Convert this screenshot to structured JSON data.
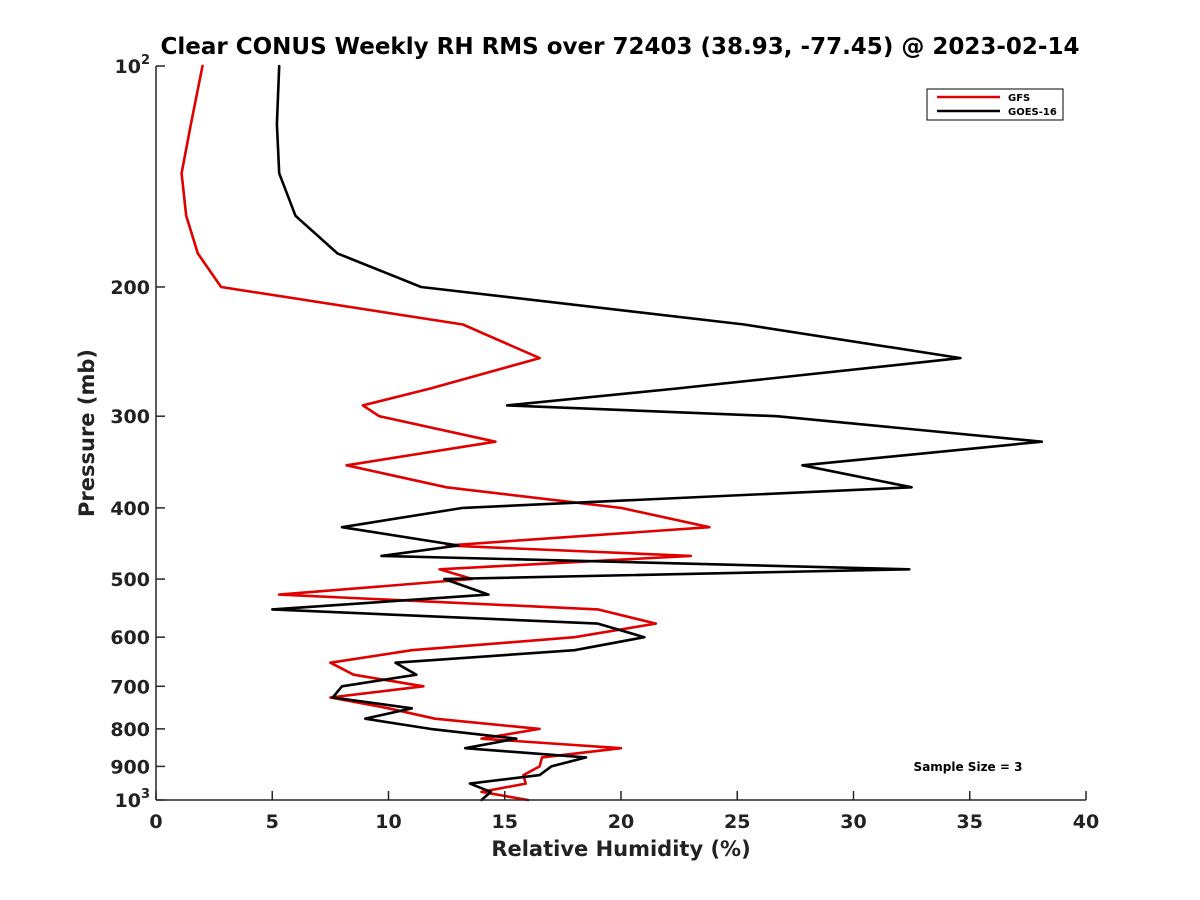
{
  "chart_data": {
    "type": "line",
    "title": "Clear CONUS Weekly RH RMS over 72403 (38.93, -77.45) @ 2023-02-14",
    "xlabel": "Relative Humidity (%)",
    "ylabel": "Pressure (mb)",
    "xlim": [
      0,
      40
    ],
    "ylim": [
      100,
      1000
    ],
    "y_scale": "log",
    "y_reversed": true,
    "grid": false,
    "legend_position": "top-right",
    "x_ticks": [
      0,
      5,
      10,
      15,
      20,
      25,
      30,
      35,
      40
    ],
    "x_tick_labels": [
      "0",
      "5",
      "10",
      "15",
      "20",
      "25",
      "30",
      "35",
      "40"
    ],
    "y_ticks": [
      100,
      200,
      300,
      400,
      500,
      600,
      700,
      800,
      900,
      1000
    ],
    "y_tick_labels": [
      {
        "base": "10",
        "exp": "2"
      },
      {
        "base": "200",
        "exp": ""
      },
      {
        "base": "300",
        "exp": ""
      },
      {
        "base": "400",
        "exp": ""
      },
      {
        "base": "500",
        "exp": ""
      },
      {
        "base": "600",
        "exp": ""
      },
      {
        "base": "700",
        "exp": ""
      },
      {
        "base": "800",
        "exp": ""
      },
      {
        "base": "900",
        "exp": ""
      },
      {
        "base": "10",
        "exp": "3"
      }
    ],
    "annotation": "Sample Size = 3",
    "series": [
      {
        "name": "GFS",
        "color": "#e00000",
        "points": [
          [
            2.0,
            100
          ],
          [
            1.5,
            120
          ],
          [
            1.1,
            140
          ],
          [
            1.3,
            160
          ],
          [
            1.8,
            180
          ],
          [
            2.8,
            200
          ],
          [
            13.2,
            225
          ],
          [
            16.5,
            250
          ],
          [
            11.8,
            275
          ],
          [
            8.9,
            290
          ],
          [
            9.6,
            300
          ],
          [
            14.6,
            325
          ],
          [
            8.2,
            350
          ],
          [
            12.5,
            375
          ],
          [
            20.0,
            400
          ],
          [
            23.8,
            425
          ],
          [
            12.5,
            450
          ],
          [
            23.0,
            465
          ],
          [
            12.2,
            485
          ],
          [
            13.6,
            500
          ],
          [
            5.3,
            525
          ],
          [
            19.0,
            550
          ],
          [
            21.5,
            575
          ],
          [
            18.0,
            600
          ],
          [
            11.0,
            625
          ],
          [
            7.5,
            650
          ],
          [
            8.5,
            675
          ],
          [
            11.5,
            700
          ],
          [
            7.5,
            725
          ],
          [
            10.0,
            750
          ],
          [
            12.0,
            775
          ],
          [
            16.5,
            800
          ],
          [
            14.0,
            825
          ],
          [
            20.0,
            850
          ],
          [
            16.6,
            875
          ],
          [
            16.5,
            900
          ],
          [
            15.8,
            925
          ],
          [
            15.9,
            950
          ],
          [
            14.0,
            975
          ],
          [
            16.0,
            1000
          ]
        ]
      },
      {
        "name": "GOES-16",
        "color": "#000000",
        "points": [
          [
            5.3,
            100
          ],
          [
            5.2,
            120
          ],
          [
            5.3,
            140
          ],
          [
            6.0,
            160
          ],
          [
            7.8,
            180
          ],
          [
            11.4,
            200
          ],
          [
            25.3,
            225
          ],
          [
            34.6,
            250
          ],
          [
            22.4,
            275
          ],
          [
            15.1,
            290
          ],
          [
            26.7,
            300
          ],
          [
            38.1,
            325
          ],
          [
            27.8,
            350
          ],
          [
            32.5,
            375
          ],
          [
            13.2,
            400
          ],
          [
            8.0,
            425
          ],
          [
            13.0,
            450
          ],
          [
            9.7,
            465
          ],
          [
            32.4,
            485
          ],
          [
            12.4,
            500
          ],
          [
            14.3,
            525
          ],
          [
            5.0,
            550
          ],
          [
            19.0,
            575
          ],
          [
            21.0,
            600
          ],
          [
            18.0,
            625
          ],
          [
            10.3,
            650
          ],
          [
            11.2,
            675
          ],
          [
            8.0,
            700
          ],
          [
            7.6,
            725
          ],
          [
            11.0,
            750
          ],
          [
            9.0,
            775
          ],
          [
            11.8,
            800
          ],
          [
            15.5,
            825
          ],
          [
            13.3,
            850
          ],
          [
            18.5,
            875
          ],
          [
            17.0,
            900
          ],
          [
            16.5,
            925
          ],
          [
            13.5,
            950
          ],
          [
            14.4,
            975
          ],
          [
            14.0,
            1000
          ]
        ]
      }
    ]
  }
}
